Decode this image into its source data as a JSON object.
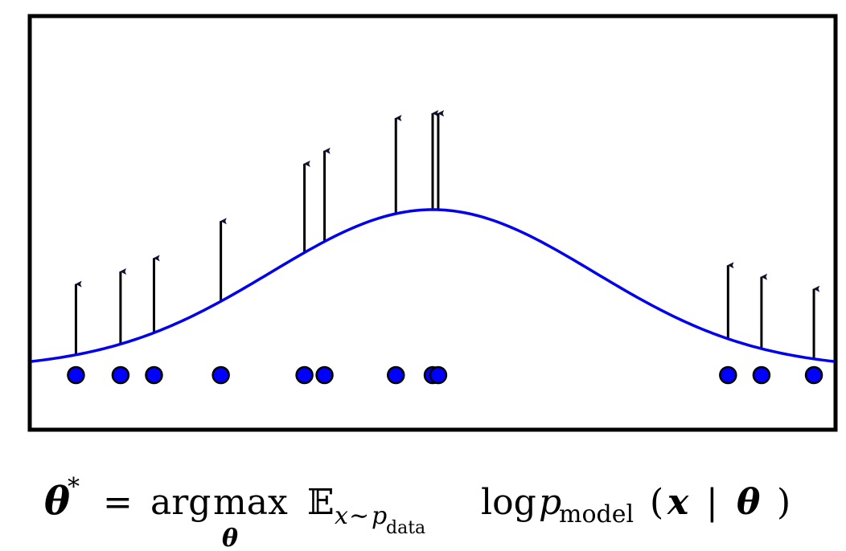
{
  "diagram": {
    "colors": {
      "frame": "#000000",
      "curve": "#0000ee",
      "point_fill": "#0000ff",
      "point_stroke": "#000000",
      "arrow": "#000000"
    },
    "x_range": [
      -3.6,
      3.6
    ],
    "density": {
      "mu": 0.0,
      "sigma": 1.45
    },
    "samples": [
      -3.2,
      -2.8,
      -2.5,
      -1.9,
      -1.15,
      -0.97,
      -0.33,
      0.0,
      0.05,
      2.65,
      2.95,
      3.42
    ]
  },
  "equation": {
    "theta": "θ",
    "star": "*",
    "equals": "=",
    "argmax_arg": "arg",
    "argmax_max": "max",
    "argmax_sub": "θ",
    "expect": "𝔼",
    "expect_sub_x": "x",
    "expect_sub_sim": "∼",
    "expect_sub_p": "p",
    "expect_sub_data": "data",
    "log": "log",
    "p": "p",
    "model": "model",
    "lparen": "(",
    "x": "x",
    "bar": "|",
    "theta2": "θ",
    "rparen": ")"
  }
}
